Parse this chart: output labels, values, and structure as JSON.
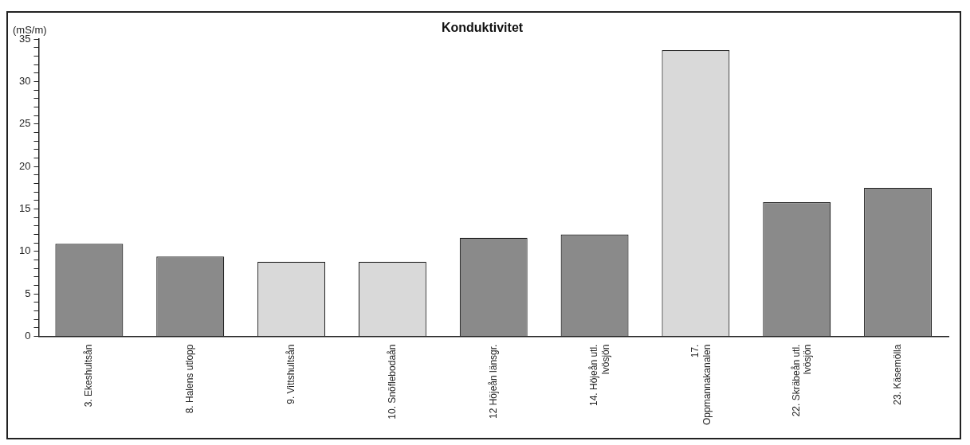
{
  "chart_data": {
    "type": "bar",
    "title": "Konduktivitet",
    "ylabel": "(mS/m)",
    "categories": [
      "3. Ekeshultsån",
      "8. Halens utlopp",
      "9. Vittshultsån",
      "10. Snöflebodaån",
      "12 Höjeån länsgr.",
      "14. Höjeån utl.\nIvösjön",
      "17.\nOppmannakanalen",
      "22. Skräbeån utl.\nIvösjön",
      "23. Käsemölla"
    ],
    "values": [
      10.9,
      9.4,
      8.8,
      8.8,
      11.6,
      12.0,
      33.7,
      15.8,
      17.5
    ],
    "colors": [
      "#8a8a8a",
      "#8a8a8a",
      "#d9d9d9",
      "#d9d9d9",
      "#8a8a8a",
      "#8a8a8a",
      "#d9d9d9",
      "#8a8a8a",
      "#8a8a8a"
    ],
    "ylim": [
      0,
      35
    ],
    "yticks": [
      0,
      {
        "value": 1,
        "label": null
      },
      {
        "value": 2,
        "label": null
      },
      {
        "value": 3,
        "label": null
      },
      {
        "value": 4,
        "label": null
      },
      5,
      {
        "value": 6,
        "label": null
      },
      {
        "value": 7,
        "label": null
      },
      {
        "value": 8,
        "label": null
      },
      {
        "value": 9,
        "label": null
      },
      10,
      {
        "value": 11,
        "label": null
      },
      {
        "value": 12,
        "label": null
      },
      {
        "value": 13,
        "label": null
      },
      {
        "value": 14,
        "label": null
      },
      15,
      {
        "value": 16,
        "label": null
      },
      {
        "value": 17,
        "label": null
      },
      {
        "value": 18,
        "label": null
      },
      {
        "value": 19,
        "label": null
      },
      20,
      {
        "value": 21,
        "label": null
      },
      {
        "value": 22,
        "label": null
      },
      {
        "value": 23,
        "label": null
      },
      {
        "value": 24,
        "label": null
      },
      25,
      {
        "value": 26,
        "label": null
      },
      {
        "value": 27,
        "label": null
      },
      {
        "value": 28,
        "label": null
      },
      {
        "value": 29,
        "label": null
      },
      30,
      {
        "value": 31,
        "label": null
      },
      {
        "value": 32,
        "label": null
      },
      {
        "value": 33,
        "label": null
      },
      {
        "value": 34,
        "label": null
      },
      35
    ],
    "grid": false,
    "legend": false
  }
}
